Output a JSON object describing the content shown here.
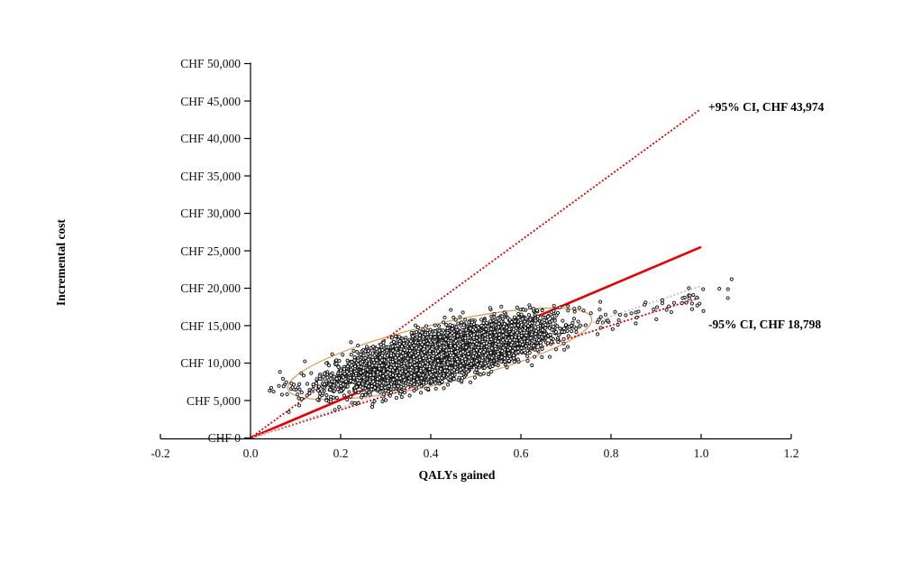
{
  "chart_data": {
    "type": "scatter",
    "title": "",
    "xlabel": "QALYs gained",
    "ylabel": "Incremental cost",
    "xlim": [
      -0.2,
      1.2
    ],
    "ylim": [
      0,
      50000
    ],
    "grid": false,
    "legend": "none",
    "x_ticks": [
      {
        "value": -0.2,
        "label": "-0.2"
      },
      {
        "value": 0.0,
        "label": "0.0"
      },
      {
        "value": 0.2,
        "label": "0.2"
      },
      {
        "value": 0.4,
        "label": "0.4"
      },
      {
        "value": 0.6,
        "label": "0.6"
      },
      {
        "value": 0.8,
        "label": "0.8"
      },
      {
        "value": 1.0,
        "label": "1.0"
      },
      {
        "value": 1.2,
        "label": "1.2"
      }
    ],
    "y_ticks": [
      {
        "value": 0,
        "label": "CHF 0"
      },
      {
        "value": 5000,
        "label": "CHF 5,000"
      },
      {
        "value": 10000,
        "label": "CHF 10,000"
      },
      {
        "value": 15000,
        "label": "CHF 15,000"
      },
      {
        "value": 20000,
        "label": "CHF 20,000"
      },
      {
        "value": 25000,
        "label": "CHF 25,000"
      },
      {
        "value": 30000,
        "label": "CHF 30,000"
      },
      {
        "value": 35000,
        "label": "CHF 35,000"
      },
      {
        "value": 40000,
        "label": "CHF 40,000"
      },
      {
        "value": 45000,
        "label": "CHF 45,000"
      },
      {
        "value": 50000,
        "label": "CHF 50,000"
      }
    ],
    "annotations": [
      {
        "text": "+95% CI, CHF 43,974",
        "x": 1.016,
        "y": 44100
      },
      {
        "text": "-95% CI, CHF 18,798",
        "x": 1.016,
        "y": 15100
      }
    ],
    "lines": [
      {
        "name": "icer-mean-line",
        "style": "solid",
        "color": "#e60000",
        "width": 2.6,
        "from": [
          0,
          0
        ],
        "to": [
          1.0,
          25500
        ]
      },
      {
        "name": "upper-ci-line",
        "style": "dotted",
        "color": "#e60000",
        "width": 2.1,
        "from": [
          0,
          0
        ],
        "to": [
          1.0,
          43974
        ]
      },
      {
        "name": "lower-ci-line",
        "style": "dotted",
        "color": "#e60000",
        "width": 2.1,
        "from": [
          0,
          0
        ],
        "to": [
          1.0,
          18798
        ]
      },
      {
        "name": "gray-dotted-line",
        "style": "dotted",
        "color": "#c3c3ce",
        "width": 2.1,
        "from": [
          0,
          0
        ],
        "to": [
          1.0,
          20300
        ]
      }
    ],
    "confidence_ellipse": {
      "color": "#d8a060",
      "line_width": 1.3,
      "center": [
        0.42,
        11250
      ],
      "semi_major_qaly": 0.346,
      "semi_minor_chf": 3980,
      "slope_chf_per_qaly": 14000
    },
    "scatter_cloud": {
      "description": "Monte Carlo simulation results (open black circles)",
      "seed": 42,
      "n_points": 8000,
      "mean": [
        0.42,
        11100
      ],
      "sd": [
        0.105,
        2050
      ],
      "correlation": 0.72,
      "right_tail": {
        "n": 50,
        "x_min": 0.75,
        "x_max": 1.07,
        "trend_slope": 13500,
        "noise_sd": 800
      },
      "left_outliers": {
        "n": 14,
        "x_min": 0.03,
        "x_max": 0.17,
        "y_mean": 6300,
        "y_sd": 1100
      },
      "marker": {
        "radius_px": 1.6,
        "stroke": "#161616",
        "stroke_width": 0.95,
        "fill": "#ffffff"
      }
    },
    "axis_color": "#000000"
  }
}
